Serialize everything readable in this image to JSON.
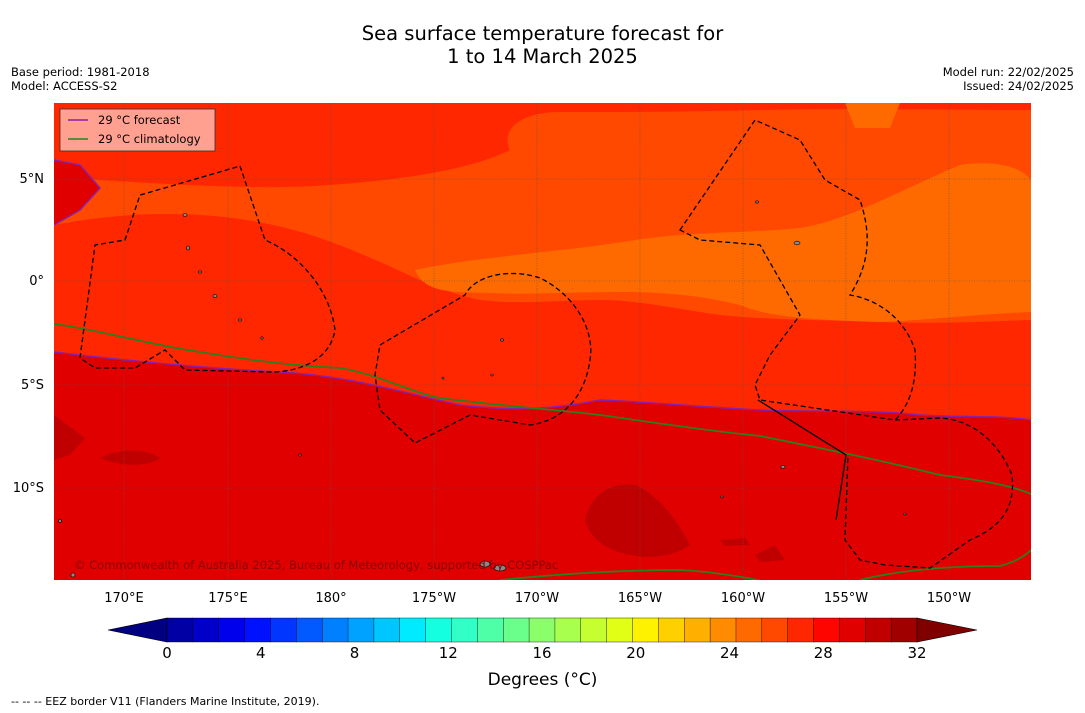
{
  "title_line1": "Sea surface temperature forecast for",
  "title_line2": "1 to 14 March 2025",
  "meta_left": {
    "base_period": "Base period: 1981-2018",
    "model": "Model: ACCESS-S2"
  },
  "meta_right": {
    "model_run": "Model run: 22/02/2025",
    "issued": "Issued: 24/02/2025"
  },
  "legend": {
    "forecast": {
      "label": "29 °C  forecast",
      "color": "#8b1fa8"
    },
    "climatology": {
      "label": "29 °C  climatology",
      "color": "#2e7d1e"
    }
  },
  "copyright": "© Commonwealth of Australia 2025, Bureau of Meteorology, supported by COSPPac",
  "lon_ticks": [
    "170°E",
    "175°E",
    "180°",
    "175°W",
    "170°W",
    "165°W",
    "160°W",
    "155°W",
    "150°W"
  ],
  "lat_ticks": [
    "5°N",
    "0°",
    "5°S",
    "10°S"
  ],
  "colorbar": {
    "ticks": [
      "0",
      "4",
      "8",
      "12",
      "16",
      "20",
      "24",
      "28",
      "32"
    ],
    "label": "Degrees (°C)",
    "colors": [
      "#000080",
      "#0000a4",
      "#0000c8",
      "#0000ed",
      "#0011ff",
      "#0036ff",
      "#005aff",
      "#007fff",
      "#00a2ff",
      "#00c6ff",
      "#00ebff",
      "#14ffe0",
      "#31ffc6",
      "#4effa8",
      "#6aff8b",
      "#8bff6a",
      "#a8ff4e",
      "#c6ff31",
      "#e0ff14",
      "#fff200",
      "#ffd000",
      "#ffaf00",
      "#ff8b00",
      "#ff6a00",
      "#ff4800",
      "#ff2700",
      "#ff0500",
      "#e00000",
      "#c00000",
      "#a00000",
      "#800000"
    ]
  },
  "map_colors": {
    "band_27_28": "#ff4800",
    "band_28_29": "#ff2700",
    "band_29_30": "#e00000",
    "band_30_31": "#c00000",
    "band_26_27": "#ff6a00"
  },
  "footnote": "--  --  -- EEZ border V11 (Flanders Marine Institute, 2019)."
}
